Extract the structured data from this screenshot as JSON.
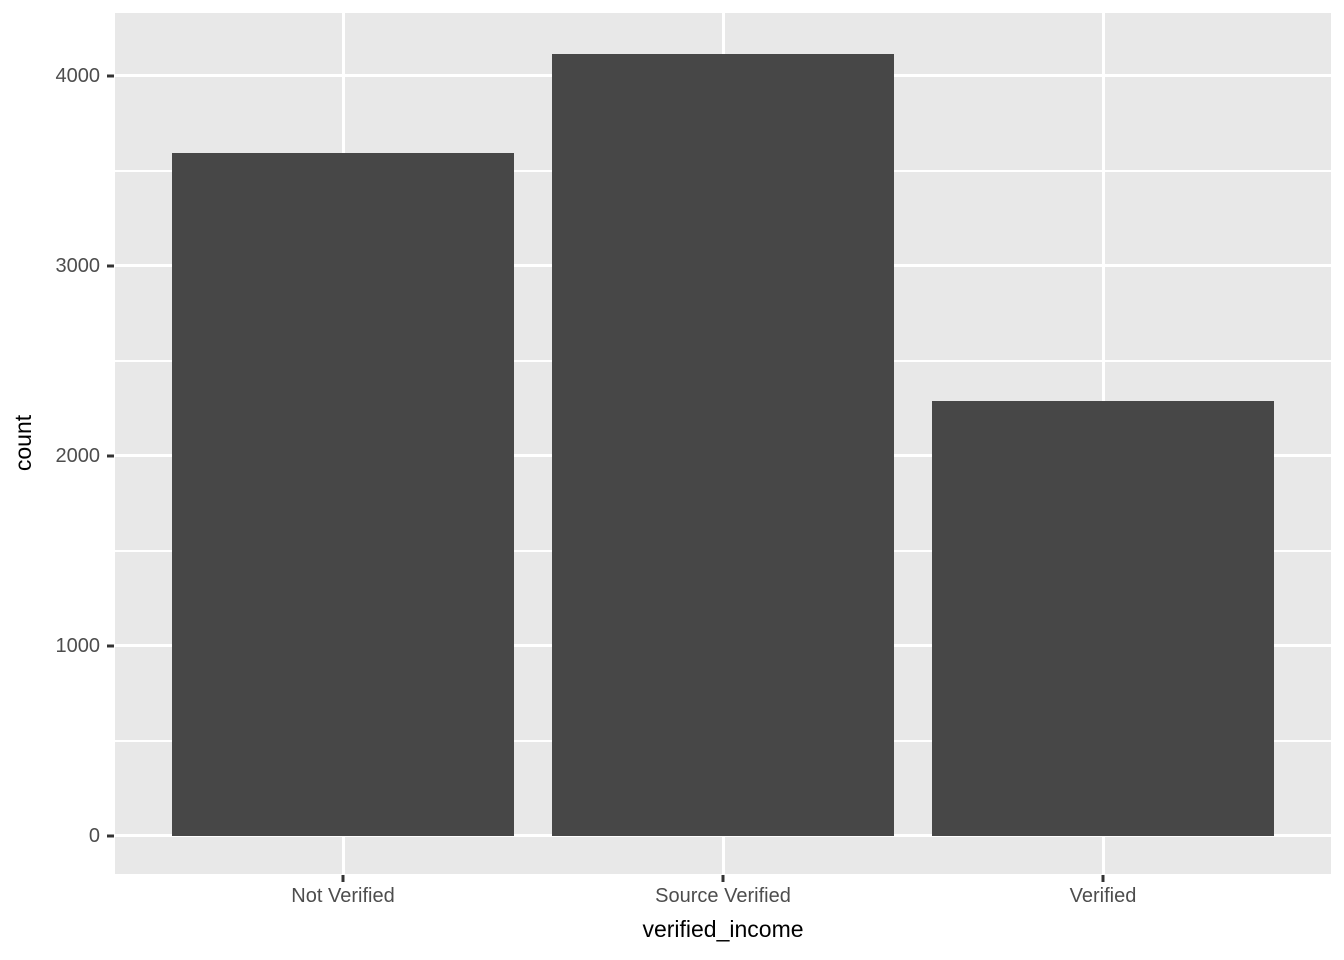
{
  "chart_data": {
    "type": "bar",
    "title": "",
    "categories": [
      "Not Verified",
      "Source Verified",
      "Verified"
    ],
    "values": [
      3594,
      4116,
      2290
    ],
    "xlabel": "verified_income",
    "ylabel": "count",
    "yticks": [
      0,
      1000,
      2000,
      3000,
      4000
    ],
    "ytick_labels": [
      "0",
      "1000",
      "2000",
      "3000",
      "4000"
    ],
    "yminor": [
      500,
      1500,
      2500,
      3500
    ],
    "ylim": [
      -200,
      4330
    ],
    "bar_rel_width": 0.9,
    "grid": "white horizontal major+minor lines; white vertical major line at each category center; grid on",
    "legend": "none"
  },
  "style": {
    "outer_bg": "#FFFFFF",
    "panel_bg": "#E8E8E8",
    "bar_fill": "#474747",
    "grid_color": "#FFFFFF",
    "tick_mark_color": "#333333",
    "tick_label_color": "#4D4D4D",
    "axis_title_color": "#000000"
  }
}
